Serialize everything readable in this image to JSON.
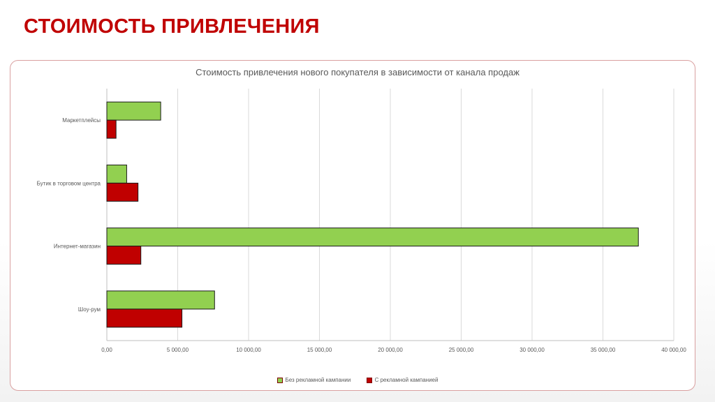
{
  "slide": {
    "title": "СТОИМОСТЬ ПРИВЛЕЧЕНИЯ"
  },
  "chart_data": {
    "type": "bar",
    "orientation": "horizontal",
    "title": "Стоимость привлечения нового покупателя в зависимости от канала продаж",
    "categories": [
      "Маркетплейсы",
      "Бутик в торговом центра",
      "Интернет-магазин",
      "Шоу-рум"
    ],
    "series": [
      {
        "name": "Без рекламной кампании",
        "color": "#92d050",
        "values": [
          3800,
          1400,
          37500,
          7600
        ]
      },
      {
        "name": "С рекламной кампанией",
        "color": "#c00000",
        "values": [
          650,
          2200,
          2400,
          5300
        ]
      }
    ],
    "x_ticks": [
      "0,00",
      "5 000,00",
      "10 000,00",
      "15 000,00",
      "20 000,00",
      "25 000,00",
      "30 000,00",
      "35 000,00",
      "40 000,00"
    ],
    "xlim": [
      0,
      40000
    ],
    "grid": true,
    "legend_position": "bottom"
  }
}
